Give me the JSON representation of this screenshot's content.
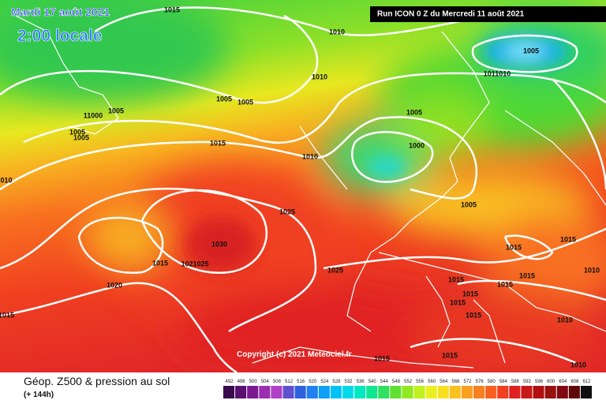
{
  "header": {
    "date": "Mardi 17 août 2021",
    "time": "2:00 locale",
    "run": "Run ICON 0 Z du Mercredi 11 août 2021"
  },
  "isobar_labels": [
    "1015",
    "1010",
    "1005",
    "1010",
    "1011010",
    "1005",
    "1005",
    "1005",
    "11000",
    "1005",
    "1005",
    "1015",
    "1005",
    "1000",
    "1010",
    "010",
    "1025",
    "1005",
    "1030",
    "1015",
    "1021025",
    "1020",
    "1025",
    "1015",
    "1015",
    "1015",
    "1015",
    "1015",
    "1010",
    "1015",
    "1015",
    "1015",
    "1010",
    "1015",
    "1015",
    "1015",
    "1010"
  ],
  "copyright": "Copyright (c) 2021 Meteociel.fr",
  "legend": {
    "title": "Géop. Z500 & pression au sol",
    "lead": "(+ 144h)",
    "scale": [
      492,
      496,
      500,
      504,
      508,
      512,
      516,
      520,
      524,
      528,
      532,
      536,
      540,
      544,
      548,
      552,
      556,
      560,
      564,
      568,
      572,
      576,
      580,
      584,
      588,
      592,
      596,
      600,
      604,
      608,
      612
    ],
    "colors": [
      "#3a0a4a",
      "#5a1070",
      "#7a1a90",
      "#9a30b0",
      "#b040c8",
      "#6050d0",
      "#3060e0",
      "#2080f0",
      "#10a0f8",
      "#00c0f8",
      "#00d8e8",
      "#00e8c0",
      "#10e890",
      "#30e060",
      "#60e030",
      "#90e820",
      "#c0f020",
      "#e8f020",
      "#f8e020",
      "#f8c020",
      "#f8a020",
      "#f88020",
      "#f86020",
      "#f04020",
      "#e02020",
      "#c81818",
      "#b01010",
      "#981010",
      "#800810",
      "#600808",
      "#101010"
    ]
  }
}
